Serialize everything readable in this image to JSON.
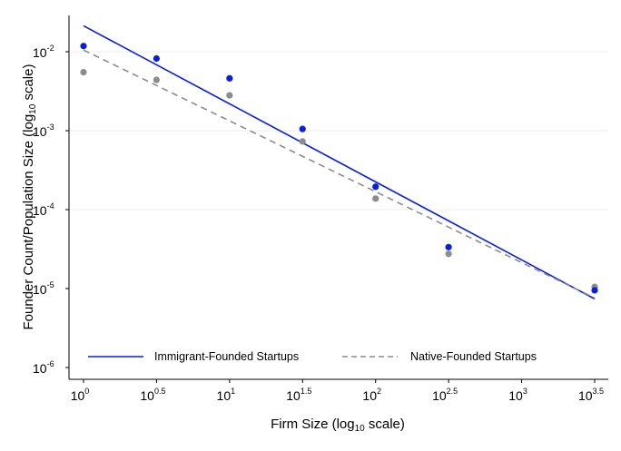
{
  "chart_data": {
    "type": "scatter",
    "xlabel": {
      "main": "Firm Size (log",
      "sub": "10",
      "tail": " scale)"
    },
    "ylabel": {
      "main": "Founder Count/Population Size (log",
      "sub": "10",
      "tail": " scale)"
    },
    "x_scale": "log10",
    "y_scale": "log10",
    "xlim_log10": [
      0,
      3.5
    ],
    "ylim_log10": [
      -6,
      -1.7
    ],
    "grid": "horizontal-major",
    "legend_position": "bottom-inside",
    "x_ticks": [
      {
        "base": "10",
        "exp": "0",
        "log10": 0
      },
      {
        "base": "10",
        "exp": "0.5",
        "log10": 0.5
      },
      {
        "base": "10",
        "exp": "1",
        "log10": 1
      },
      {
        "base": "10",
        "exp": "1.5",
        "log10": 1.5
      },
      {
        "base": "10",
        "exp": "2",
        "log10": 2
      },
      {
        "base": "10",
        "exp": "2.5",
        "log10": 2.5
      },
      {
        "base": "10",
        "exp": "3",
        "log10": 3
      },
      {
        "base": "10",
        "exp": "3.5",
        "log10": 3.5
      }
    ],
    "y_ticks": [
      {
        "base": "10",
        "exp": "-2",
        "log10": -2
      },
      {
        "base": "10",
        "exp": "-3",
        "log10": -3
      },
      {
        "base": "10",
        "exp": "-4",
        "log10": -4
      },
      {
        "base": "10",
        "exp": "-5",
        "log10": -5
      },
      {
        "base": "10",
        "exp": "-6",
        "log10": -6
      }
    ],
    "series": [
      {
        "name": "Immigrant-Founded Startups",
        "color": "#0a1ee0",
        "line_style": "solid",
        "points": [
          {
            "x": 1,
            "y": 0.0118
          },
          {
            "x": 3.16,
            "y": 0.0082
          },
          {
            "x": 10,
            "y": 0.0046
          },
          {
            "x": 31.6,
            "y": 0.00105
          },
          {
            "x": 100,
            "y": 0.000195
          },
          {
            "x": 316,
            "y": 3.35e-05
          },
          {
            "x": 3162,
            "y": 9.5e-06
          }
        ],
        "fit_line": [
          {
            "x": 1,
            "y": 0.0213
          },
          {
            "x": 3162,
            "y": 7.4e-06
          }
        ]
      },
      {
        "name": "Native-Founded Startups",
        "color": "#8c8c8c",
        "line_style": "dashed",
        "points": [
          {
            "x": 1,
            "y": 0.0055
          },
          {
            "x": 3.16,
            "y": 0.0044
          },
          {
            "x": 10,
            "y": 0.0028
          },
          {
            "x": 31.6,
            "y": 0.00073
          },
          {
            "x": 100,
            "y": 0.000138
          },
          {
            "x": 316,
            "y": 2.75e-05
          },
          {
            "x": 3162,
            "y": 1.05e-05
          }
        ],
        "fit_line": [
          {
            "x": 1,
            "y": 0.0105
          },
          {
            "x": 3162,
            "y": 7.6e-06
          }
        ]
      }
    ]
  }
}
